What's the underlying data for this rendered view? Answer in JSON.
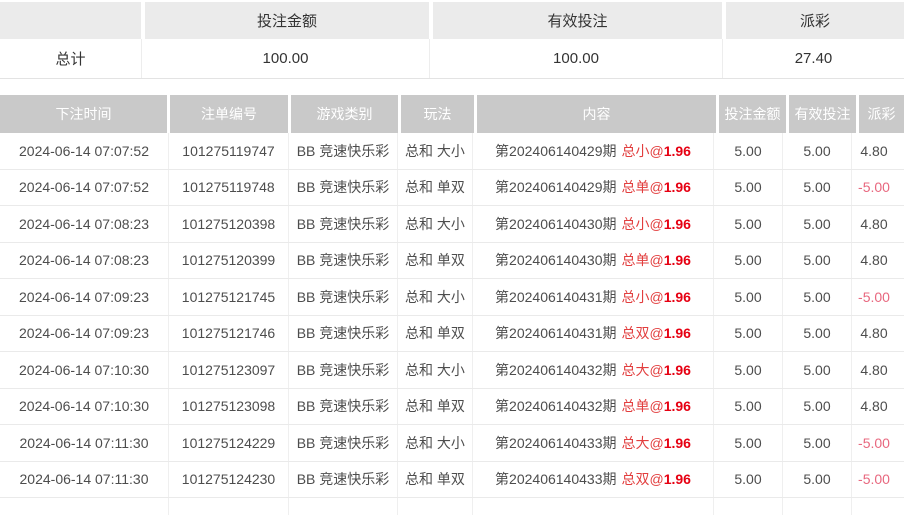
{
  "summary": {
    "headers": [
      "",
      "投注金额",
      "有效投注",
      "派彩"
    ],
    "total_label": "总计",
    "bet_amount": "100.00",
    "valid_bet": "100.00",
    "payout": "27.40"
  },
  "table": {
    "headers": [
      "下注时间",
      "注单编号",
      "游戏类别",
      "玩法",
      "内容",
      "投注金额",
      "有效投注",
      "派彩"
    ],
    "rows": [
      {
        "time": "2024-06-14 07:07:52",
        "order_id": "101275119747",
        "game": "BB 竞速快乐彩",
        "play": "总和 大小",
        "content_prefix": "第202406140429期",
        "content_pick": "总小@",
        "content_odds": "1.96",
        "bet": "5.00",
        "valid": "5.00",
        "payout": "4.80"
      },
      {
        "time": "2024-06-14 07:07:52",
        "order_id": "101275119748",
        "game": "BB 竞速快乐彩",
        "play": "总和 单双",
        "content_prefix": "第202406140429期",
        "content_pick": "总单@",
        "content_odds": "1.96",
        "bet": "5.00",
        "valid": "5.00",
        "payout": "-5.00"
      },
      {
        "time": "2024-06-14 07:08:23",
        "order_id": "101275120398",
        "game": "BB 竞速快乐彩",
        "play": "总和 大小",
        "content_prefix": "第202406140430期",
        "content_pick": "总小@",
        "content_odds": "1.96",
        "bet": "5.00",
        "valid": "5.00",
        "payout": "4.80"
      },
      {
        "time": "2024-06-14 07:08:23",
        "order_id": "101275120399",
        "game": "BB 竞速快乐彩",
        "play": "总和 单双",
        "content_prefix": "第202406140430期",
        "content_pick": "总单@",
        "content_odds": "1.96",
        "bet": "5.00",
        "valid": "5.00",
        "payout": "4.80"
      },
      {
        "time": "2024-06-14 07:09:23",
        "order_id": "101275121745",
        "game": "BB 竞速快乐彩",
        "play": "总和 大小",
        "content_prefix": "第202406140431期",
        "content_pick": "总小@",
        "content_odds": "1.96",
        "bet": "5.00",
        "valid": "5.00",
        "payout": "-5.00"
      },
      {
        "time": "2024-06-14 07:09:23",
        "order_id": "101275121746",
        "game": "BB 竞速快乐彩",
        "play": "总和 单双",
        "content_prefix": "第202406140431期",
        "content_pick": "总双@",
        "content_odds": "1.96",
        "bet": "5.00",
        "valid": "5.00",
        "payout": "4.80"
      },
      {
        "time": "2024-06-14 07:10:30",
        "order_id": "101275123097",
        "game": "BB 竞速快乐彩",
        "play": "总和 大小",
        "content_prefix": "第202406140432期",
        "content_pick": "总大@",
        "content_odds": "1.96",
        "bet": "5.00",
        "valid": "5.00",
        "payout": "4.80"
      },
      {
        "time": "2024-06-14 07:10:30",
        "order_id": "101275123098",
        "game": "BB 竞速快乐彩",
        "play": "总和 单双",
        "content_prefix": "第202406140432期",
        "content_pick": "总单@",
        "content_odds": "1.96",
        "bet": "5.00",
        "valid": "5.00",
        "payout": "4.80"
      },
      {
        "time": "2024-06-14 07:11:30",
        "order_id": "101275124229",
        "game": "BB 竞速快乐彩",
        "play": "总和 大小",
        "content_prefix": "第202406140433期",
        "content_pick": "总大@",
        "content_odds": "1.96",
        "bet": "5.00",
        "valid": "5.00",
        "payout": "-5.00"
      },
      {
        "time": "2024-06-14 07:11:30",
        "order_id": "101275124230",
        "game": "BB 竞速快乐彩",
        "play": "总和 单双",
        "content_prefix": "第202406140433期",
        "content_pick": "总双@",
        "content_odds": "1.96",
        "bet": "5.00",
        "valid": "5.00",
        "payout": "-5.00"
      }
    ]
  },
  "colors": {
    "header_bg": "#c9c9c9",
    "summary_header_bg": "#ebebeb",
    "pick_red": "#e23e3e",
    "odds_red": "#e60012",
    "negative_payout": "#e8687f"
  }
}
